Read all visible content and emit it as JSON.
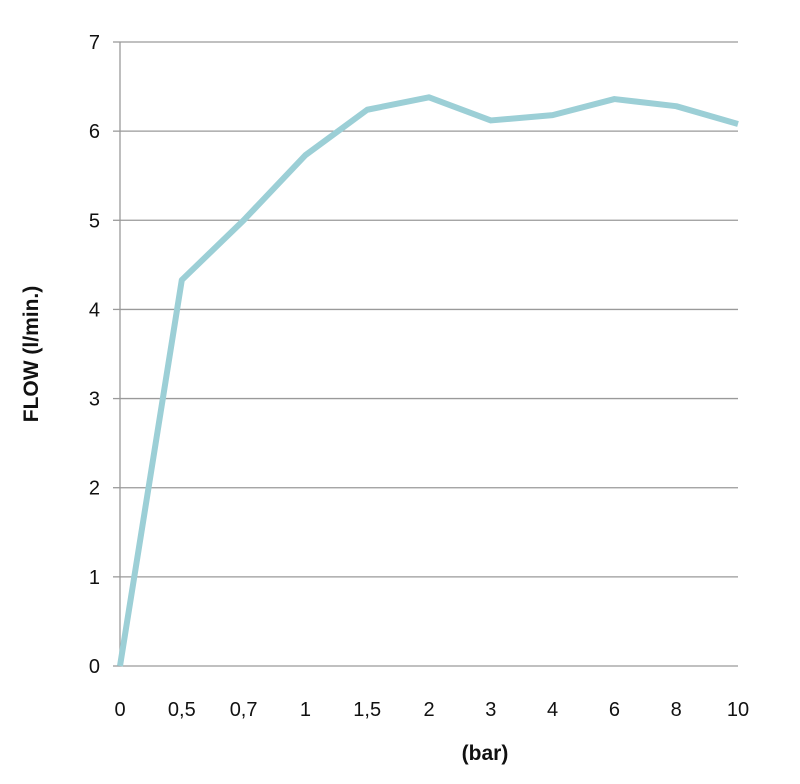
{
  "chart_data": {
    "type": "line",
    "title": "",
    "xlabel": "(bar)",
    "ylabel": "FLOW (l/min.)",
    "categories": [
      "0",
      "0,5",
      "0,7",
      "1",
      "1,5",
      "2",
      "3",
      "4",
      "6",
      "8",
      "10"
    ],
    "series": [
      {
        "name": "Flow",
        "values": [
          0,
          4.33,
          5.0,
          5.73,
          6.24,
          6.38,
          6.12,
          6.18,
          6.36,
          6.28,
          6.08
        ],
        "color": "#9ccfd6"
      }
    ],
    "ylim": [
      0,
      7
    ],
    "yticks": [
      0,
      1,
      2,
      3,
      4,
      5,
      6,
      7
    ],
    "grid": true,
    "legend": "none"
  }
}
